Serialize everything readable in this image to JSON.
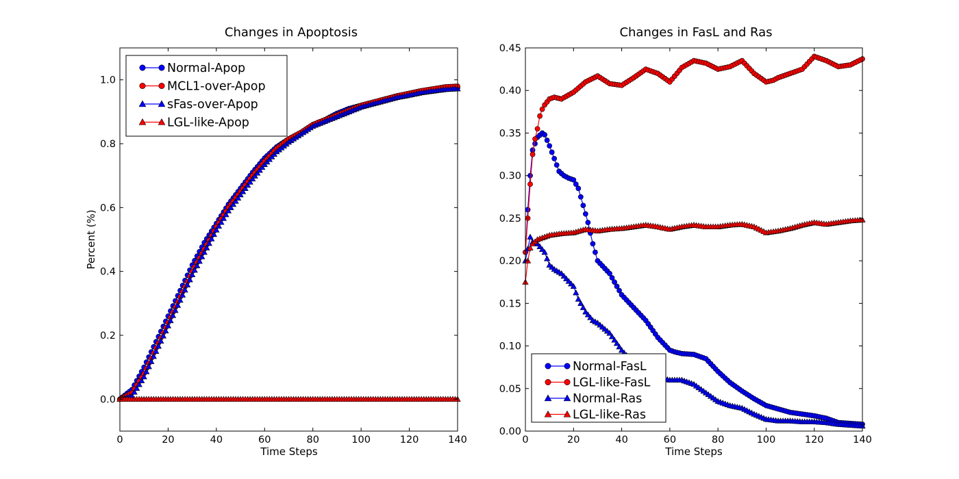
{
  "colors": {
    "blue": "#0000ff",
    "red": "#ff0000",
    "edge": "#000000",
    "background": "#ffffff"
  },
  "chart_data": [
    {
      "type": "line",
      "title": "Changes in Apoptosis",
      "xlabel": "Time Steps",
      "ylabel": "Percent (%)",
      "xlim": [
        0,
        140
      ],
      "ylim": [
        -0.1,
        1.1
      ],
      "xticks": [
        "0",
        "20",
        "40",
        "60",
        "80",
        "100",
        "120",
        "140"
      ],
      "yticks": [
        "0.0",
        "0.2",
        "0.4",
        "0.6",
        "0.8",
        "1.0"
      ],
      "legend_position": "top-left",
      "series": [
        {
          "name": "Normal-Apop",
          "color": "blue",
          "marker": "circle",
          "x": [
            0,
            5,
            10,
            15,
            20,
            25,
            30,
            35,
            40,
            45,
            50,
            55,
            60,
            65,
            70,
            75,
            80,
            85,
            90,
            95,
            100,
            105,
            110,
            115,
            120,
            125,
            130,
            135,
            140
          ],
          "y": [
            0.0,
            0.03,
            0.1,
            0.18,
            0.26,
            0.34,
            0.42,
            0.49,
            0.55,
            0.61,
            0.66,
            0.71,
            0.755,
            0.79,
            0.815,
            0.835,
            0.86,
            0.875,
            0.895,
            0.91,
            0.92,
            0.93,
            0.94,
            0.95,
            0.955,
            0.962,
            0.967,
            0.972,
            0.975
          ]
        },
        {
          "name": "MCL1-over-Apop",
          "color": "red",
          "marker": "circle",
          "x": [
            0,
            5,
            10,
            15,
            20,
            25,
            30,
            35,
            40,
            45,
            50,
            55,
            60,
            65,
            70,
            75,
            80,
            85,
            90,
            95,
            100,
            105,
            110,
            115,
            120,
            125,
            130,
            135,
            140
          ],
          "y": [
            0.0,
            0.02,
            0.08,
            0.16,
            0.24,
            0.32,
            0.4,
            0.47,
            0.54,
            0.6,
            0.65,
            0.7,
            0.745,
            0.785,
            0.815,
            0.835,
            0.86,
            0.875,
            0.89,
            0.905,
            0.92,
            0.93,
            0.94,
            0.95,
            0.958,
            0.966,
            0.972,
            0.978,
            0.98
          ]
        },
        {
          "name": "sFas-over-Apop",
          "color": "blue",
          "marker": "triangle",
          "x": [
            0,
            5,
            10,
            15,
            20,
            25,
            30,
            35,
            40,
            45,
            50,
            55,
            60,
            65,
            70,
            75,
            80,
            85,
            90,
            95,
            100,
            105,
            110,
            115,
            120,
            125,
            130,
            135,
            140
          ],
          "y": [
            0.0,
            0.01,
            0.07,
            0.15,
            0.23,
            0.31,
            0.39,
            0.46,
            0.53,
            0.59,
            0.64,
            0.69,
            0.735,
            0.775,
            0.805,
            0.83,
            0.855,
            0.87,
            0.885,
            0.9,
            0.915,
            0.925,
            0.935,
            0.945,
            0.952,
            0.96,
            0.965,
            0.97,
            0.972
          ]
        },
        {
          "name": "LGL-like-Apop",
          "color": "red",
          "marker": "triangle",
          "x": [
            0,
            140
          ],
          "y": [
            0.0,
            0.0
          ]
        }
      ]
    },
    {
      "type": "line",
      "title": "Changes in FasL and Ras",
      "xlabel": "Time Steps",
      "ylabel": "",
      "xlim": [
        0,
        140
      ],
      "ylim": [
        0,
        0.45
      ],
      "xticks": [
        "0",
        "20",
        "40",
        "60",
        "80",
        "100",
        "120",
        "140"
      ],
      "yticks": [
        "0.00",
        "0.05",
        "0.10",
        "0.15",
        "0.20",
        "0.25",
        "0.30",
        "0.35",
        "0.40",
        "0.45"
      ],
      "legend_position": "bottom-left",
      "series": [
        {
          "name": "Normal-FasL",
          "color": "blue",
          "marker": "circle",
          "x": [
            0,
            1,
            2,
            3,
            5,
            7,
            8,
            10,
            12,
            14,
            16,
            18,
            20,
            22,
            24,
            26,
            28,
            30,
            35,
            40,
            45,
            50,
            55,
            60,
            62,
            65,
            70,
            75,
            80,
            85,
            90,
            95,
            100,
            105,
            110,
            115,
            120,
            125,
            130,
            135,
            140
          ],
          "y": [
            0.21,
            0.26,
            0.3,
            0.33,
            0.345,
            0.35,
            0.348,
            0.335,
            0.32,
            0.305,
            0.3,
            0.297,
            0.295,
            0.285,
            0.265,
            0.245,
            0.22,
            0.2,
            0.185,
            0.16,
            0.145,
            0.13,
            0.11,
            0.095,
            0.093,
            0.091,
            0.09,
            0.085,
            0.07,
            0.057,
            0.047,
            0.038,
            0.03,
            0.026,
            0.022,
            0.02,
            0.018,
            0.015,
            0.01,
            0.009,
            0.008
          ]
        },
        {
          "name": "LGL-like-FasL",
          "color": "red",
          "marker": "circle",
          "x": [
            0,
            1,
            2,
            3,
            4,
            5,
            6,
            7,
            8,
            10,
            12,
            15,
            20,
            25,
            30,
            35,
            40,
            45,
            50,
            55,
            60,
            65,
            70,
            75,
            80,
            85,
            90,
            95,
            100,
            103,
            105,
            110,
            115,
            120,
            125,
            130,
            135,
            140
          ],
          "y": [
            0.21,
            0.25,
            0.29,
            0.325,
            0.343,
            0.355,
            0.37,
            0.378,
            0.383,
            0.39,
            0.392,
            0.39,
            0.398,
            0.41,
            0.417,
            0.408,
            0.406,
            0.415,
            0.425,
            0.42,
            0.41,
            0.427,
            0.435,
            0.432,
            0.425,
            0.428,
            0.435,
            0.42,
            0.41,
            0.412,
            0.415,
            0.42,
            0.425,
            0.44,
            0.435,
            0.428,
            0.43,
            0.437
          ]
        },
        {
          "name": "Normal-Ras",
          "color": "blue",
          "marker": "triangle",
          "x": [
            0,
            2,
            3,
            5,
            8,
            10,
            12,
            15,
            20,
            22,
            25,
            28,
            30,
            35,
            40,
            45,
            50,
            55,
            60,
            65,
            70,
            75,
            80,
            85,
            90,
            95,
            100,
            105,
            110,
            115,
            120,
            125,
            130,
            135,
            140
          ],
          "y": [
            0.2,
            0.228,
            0.222,
            0.22,
            0.21,
            0.195,
            0.19,
            0.185,
            0.17,
            0.155,
            0.14,
            0.13,
            0.127,
            0.115,
            0.095,
            0.08,
            0.07,
            0.063,
            0.06,
            0.06,
            0.055,
            0.045,
            0.035,
            0.03,
            0.027,
            0.02,
            0.014,
            0.012,
            0.012,
            0.011,
            0.011,
            0.01,
            0.008,
            0.007,
            0.006
          ]
        },
        {
          "name": "LGL-like-Ras",
          "color": "red",
          "marker": "triangle",
          "x": [
            0,
            1,
            2,
            3,
            5,
            8,
            10,
            15,
            20,
            25,
            30,
            35,
            40,
            45,
            50,
            55,
            60,
            65,
            70,
            75,
            80,
            85,
            90,
            95,
            100,
            105,
            110,
            115,
            120,
            125,
            130,
            135,
            140
          ],
          "y": [
            0.175,
            0.2,
            0.215,
            0.22,
            0.225,
            0.228,
            0.23,
            0.232,
            0.233,
            0.237,
            0.235,
            0.237,
            0.238,
            0.24,
            0.242,
            0.24,
            0.237,
            0.24,
            0.242,
            0.24,
            0.24,
            0.242,
            0.243,
            0.24,
            0.233,
            0.235,
            0.238,
            0.242,
            0.245,
            0.243,
            0.245,
            0.247,
            0.248
          ]
        }
      ]
    }
  ]
}
